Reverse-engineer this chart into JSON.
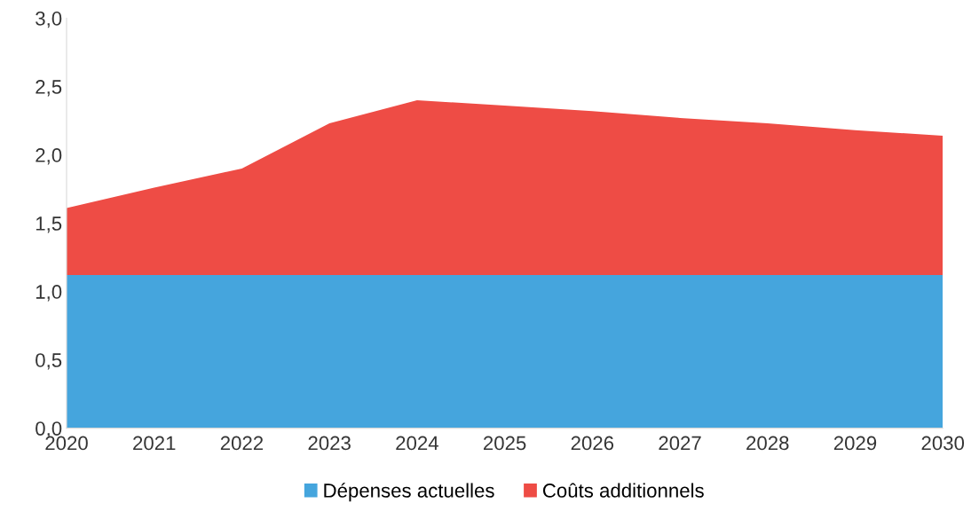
{
  "chart_data": {
    "type": "area",
    "stacked": true,
    "x": [
      2020,
      2021,
      2022,
      2023,
      2024,
      2025,
      2026,
      2027,
      2028,
      2029,
      2030
    ],
    "series": [
      {
        "name": "Dépenses actuelles",
        "color": "#45a5dd",
        "values": [
          1.12,
          1.12,
          1.12,
          1.12,
          1.12,
          1.12,
          1.12,
          1.12,
          1.12,
          1.12,
          1.12
        ]
      },
      {
        "name": "Coûts additionnels",
        "color": "#ee4c45",
        "values": [
          0.49,
          0.64,
          0.78,
          1.11,
          1.28,
          1.24,
          1.2,
          1.15,
          1.11,
          1.06,
          1.02
        ]
      }
    ],
    "xlim": [
      2020,
      2030
    ],
    "xticks": [
      2020,
      2021,
      2022,
      2023,
      2024,
      2025,
      2026,
      2027,
      2028,
      2029,
      2030
    ],
    "ylim": [
      0,
      3
    ],
    "yticks": [
      {
        "value": 0,
        "label": "0,0"
      },
      {
        "value": 0.5,
        "label": "0,5"
      },
      {
        "value": 1,
        "label": "1,0"
      },
      {
        "value": 1.5,
        "label": "1,5"
      },
      {
        "value": 2,
        "label": "2,0"
      },
      {
        "value": 2.5,
        "label": "2,5"
      },
      {
        "value": 3,
        "label": "3,0"
      }
    ],
    "grid": false,
    "legend": "bottom"
  }
}
